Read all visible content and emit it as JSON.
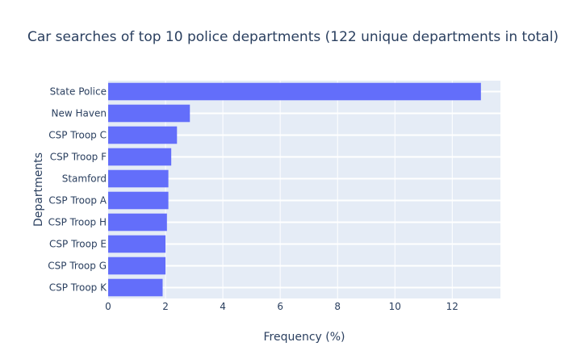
{
  "chart_data": {
    "type": "bar",
    "orientation": "horizontal",
    "title": "Car searches of top 10 police departments (122 unique departments in total)",
    "xlabel": "Frequency (%)",
    "ylabel": "Departments",
    "categories": [
      "State Police",
      "New Haven",
      "CSP Troop C",
      "CSP Troop F",
      "Stamford",
      "CSP Troop A",
      "CSP Troop H",
      "CSP Troop E",
      "CSP Troop G",
      "CSP Troop K"
    ],
    "values": [
      13.0,
      2.85,
      2.4,
      2.2,
      2.1,
      2.1,
      2.05,
      2.0,
      2.0,
      1.9
    ],
    "xlim": [
      0,
      13.68
    ],
    "xticks": [
      0,
      2,
      4,
      6,
      8,
      10,
      12
    ],
    "grid": true,
    "colors": {
      "bar": "#636efa",
      "plot_bg": "#e5ecf6",
      "grid": "#ffffff",
      "text": "#2a3f5f"
    }
  }
}
